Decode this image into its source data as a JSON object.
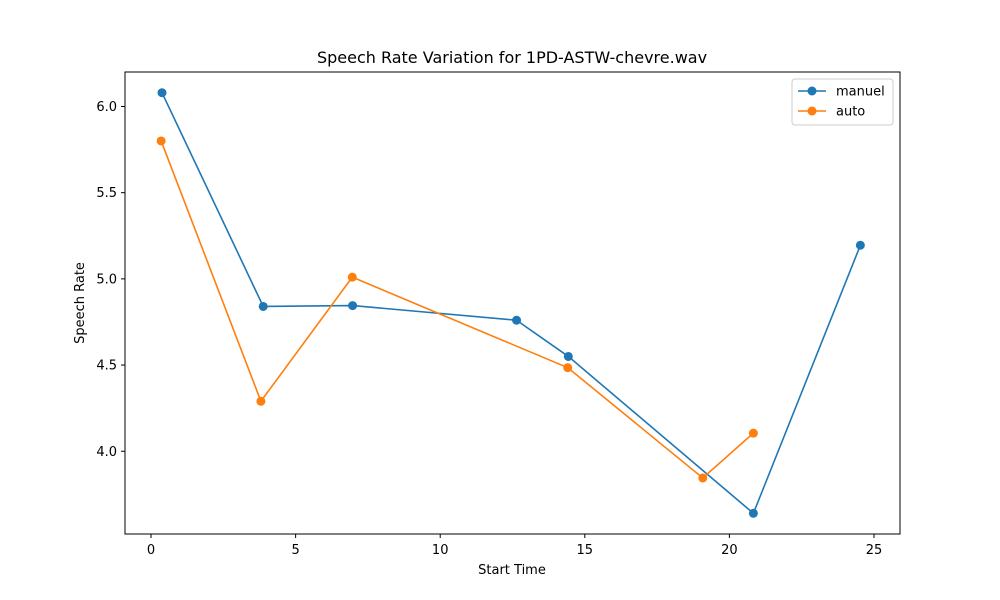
{
  "chart_data": {
    "type": "line",
    "title": "Speech Rate Variation for 1PD-ASTW-chevre.wav",
    "xlabel": "Start Time",
    "ylabel": "Speech Rate",
    "xlim": [
      -0.9,
      25.9
    ],
    "ylim": [
      3.52,
      6.2
    ],
    "xticks": [
      0,
      5,
      10,
      15,
      20,
      25
    ],
    "yticks": [
      4.0,
      4.5,
      5.0,
      5.5,
      6.0
    ],
    "ytick_labels": [
      "4.0",
      "4.5",
      "5.0",
      "5.5",
      "6.0"
    ],
    "legend_position": "top-right",
    "grid": false,
    "series": [
      {
        "name": "manuel",
        "color": "#1f77b4",
        "x": [
          0.38,
          3.88,
          6.97,
          12.64,
          14.43,
          20.83,
          24.53
        ],
        "y": [
          6.08,
          4.84,
          4.845,
          4.76,
          4.55,
          3.64,
          5.195
        ]
      },
      {
        "name": "auto",
        "color": "#ff7f0e",
        "x": [
          0.35,
          3.8,
          6.96,
          14.41,
          19.08,
          20.83
        ],
        "y": [
          5.8,
          4.29,
          5.01,
          4.485,
          3.845,
          4.105
        ]
      }
    ]
  }
}
